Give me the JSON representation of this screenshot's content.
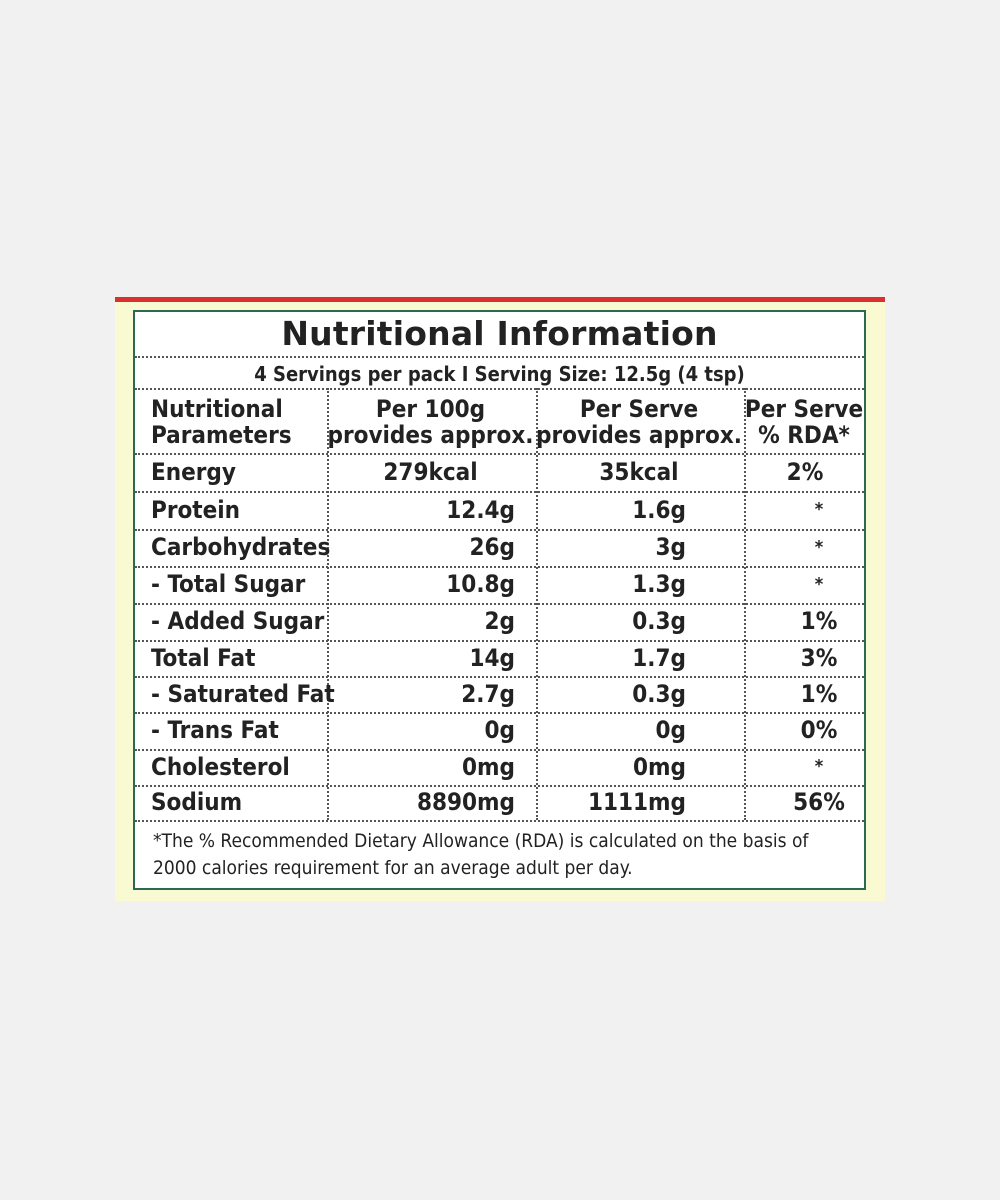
{
  "label": {
    "title": "Nutritional Information",
    "serving_info": "4 Servings per pack  I  Serving Size: 12.5g (4 tsp)",
    "columns": {
      "param": [
        "Nutritional",
        "Parameters"
      ],
      "per100g": [
        "Per 100g",
        "provides approx."
      ],
      "perserve": [
        "Per Serve",
        "provides approx."
      ],
      "rda": [
        "Per Serve",
        "% RDA*"
      ]
    },
    "rows": [
      {
        "name": "Energy",
        "per100g": "279kcal",
        "perserve": "35kcal",
        "rda": "2%"
      },
      {
        "name": "Protein",
        "per100g": "12.4g",
        "perserve": "1.6g",
        "rda": "*"
      },
      {
        "name": "Carbohydrates",
        "per100g": "26g",
        "perserve": "3g",
        "rda": "*"
      },
      {
        "name": "- Total Sugar",
        "per100g": "10.8g",
        "perserve": "1.3g",
        "rda": "*"
      },
      {
        "name": "- Added Sugar",
        "per100g": "2g",
        "perserve": "0.3g",
        "rda": "1%"
      },
      {
        "name": "Total Fat",
        "per100g": "14g",
        "perserve": "1.7g",
        "rda": "3%"
      },
      {
        "name": "- Saturated Fat",
        "per100g": "2.7g",
        "perserve": "0.3g",
        "rda": "1%"
      },
      {
        "name": "- Trans Fat",
        "per100g": "0g",
        "perserve": "0g",
        "rda": "0%"
      },
      {
        "name": "Cholesterol",
        "per100g": "0mg",
        "perserve": "0mg",
        "rda": "*"
      },
      {
        "name": "Sodium",
        "per100g": "8890mg",
        "perserve": "1111mg",
        "rda": "56%"
      }
    ],
    "footnote": [
      "*The % Recommended Dietary Allowance (RDA) is calculated on the basis of",
      "2000 calories requirement for an average adult per day."
    ]
  },
  "colors": {
    "background": "#f1f1f1",
    "card": "#fafad2",
    "accent_strip": "#d93030",
    "border": "#2a6a52"
  }
}
